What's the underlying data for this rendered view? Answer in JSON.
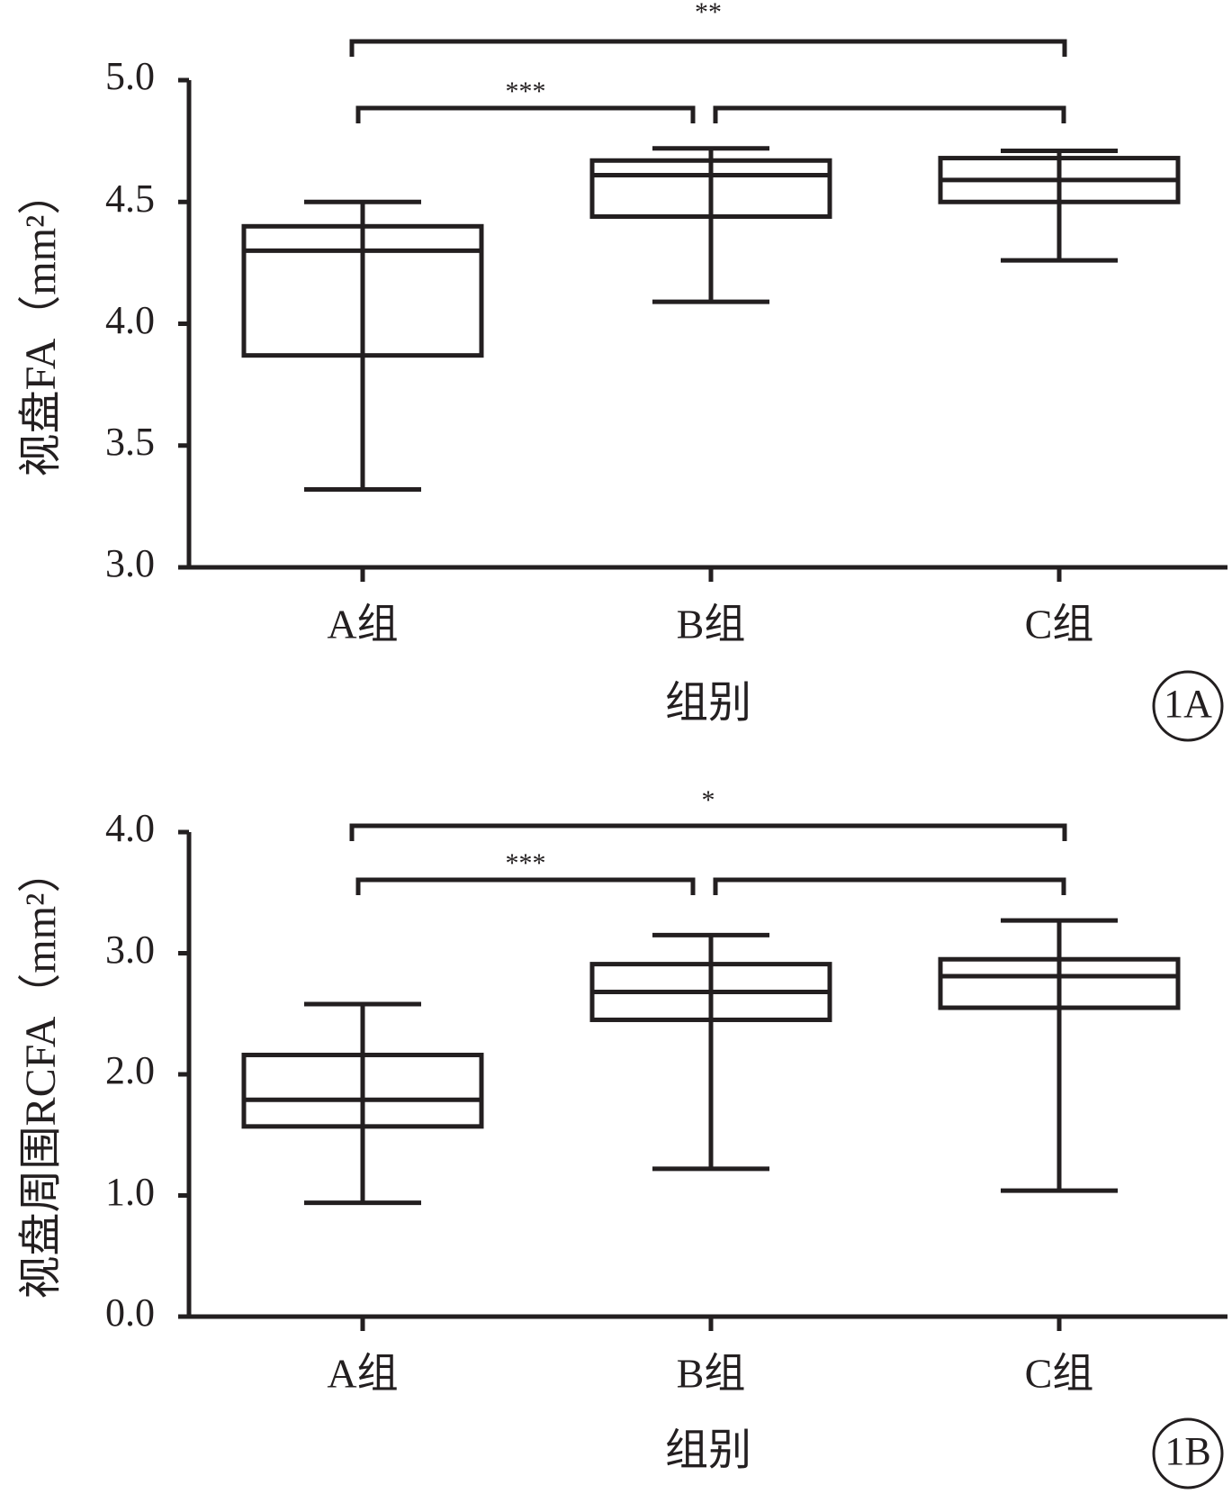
{
  "colors": {
    "ink": "#231f20",
    "background": "#ffffff"
  },
  "chart_data": [
    {
      "type": "box",
      "panel_label": "1A",
      "xlabel": "组别",
      "ylabel": "视盘FA（mm²）",
      "ylim": [
        3.0,
        5.0
      ],
      "yticks": [
        3.0,
        3.5,
        4.0,
        4.5,
        5.0
      ],
      "ytick_labels": [
        "3.0",
        "3.5",
        "4.0",
        "4.5",
        "5.0"
      ],
      "categories": [
        "A组",
        "B组",
        "C组"
      ],
      "boxes": [
        {
          "group": "A组",
          "min": 3.32,
          "q1": 3.87,
          "median": 4.3,
          "q3": 4.4,
          "max": 4.5
        },
        {
          "group": "B组",
          "min": 4.09,
          "q1": 4.44,
          "median": 4.61,
          "q3": 4.67,
          "max": 4.72
        },
        {
          "group": "C组",
          "min": 4.26,
          "q1": 4.5,
          "median": 4.59,
          "q3": 4.68,
          "max": 4.71
        }
      ],
      "comparisons": [
        {
          "from": 0,
          "to": 2,
          "label": "**",
          "level": 2
        },
        {
          "from": 0,
          "to": 1,
          "label": "***",
          "level": 1
        },
        {
          "from": 1,
          "to": 2,
          "label": "",
          "level": 1
        }
      ]
    },
    {
      "type": "box",
      "panel_label": "1B",
      "xlabel": "组别",
      "ylabel": "视盘周围RCFA（mm²）",
      "ylim": [
        0.0,
        4.0
      ],
      "yticks": [
        0.0,
        1.0,
        2.0,
        3.0,
        4.0
      ],
      "ytick_labels": [
        "0.0",
        "1.0",
        "2.0",
        "3.0",
        "4.0"
      ],
      "categories": [
        "A组",
        "B组",
        "C组"
      ],
      "boxes": [
        {
          "group": "A组",
          "min": 0.94,
          "q1": 1.57,
          "median": 1.79,
          "q3": 2.16,
          "max": 2.58
        },
        {
          "group": "B组",
          "min": 1.22,
          "q1": 2.45,
          "median": 2.68,
          "q3": 2.91,
          "max": 3.15
        },
        {
          "group": "C组",
          "min": 1.04,
          "q1": 2.55,
          "median": 2.81,
          "q3": 2.95,
          "max": 3.27
        }
      ],
      "comparisons": [
        {
          "from": 0,
          "to": 2,
          "label": "*",
          "level": 2
        },
        {
          "from": 0,
          "to": 1,
          "label": "***",
          "level": 1
        },
        {
          "from": 1,
          "to": 2,
          "label": "",
          "level": 1
        }
      ]
    }
  ]
}
